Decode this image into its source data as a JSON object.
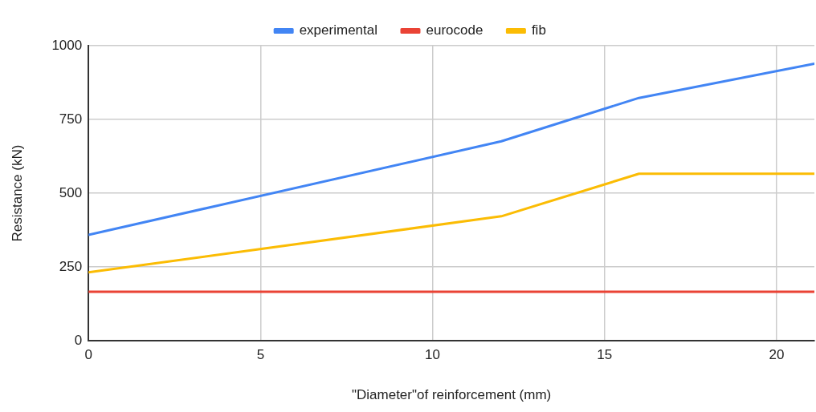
{
  "chart_data": {
    "type": "line",
    "xlabel": "\"Diameter\"of reinforcement (mm)",
    "ylabel": "Resistance (kN)",
    "xlim": [
      0,
      21.1
    ],
    "xticks": [
      0,
      5,
      10,
      15,
      20
    ],
    "ylim": [
      0,
      1000
    ],
    "yticks": [
      0,
      250,
      500,
      750,
      1000
    ],
    "grid": true,
    "legend": "top",
    "marker": "none",
    "line_style": "solid",
    "series": [
      {
        "name": "experimental",
        "color": "#4285f4",
        "x": [
          0,
          12,
          16,
          21.1
        ],
        "values": [
          359,
          676,
          823,
          939
        ]
      },
      {
        "name": "eurocode",
        "color": "#ea4335",
        "x": [
          0,
          21.1
        ],
        "values": [
          166,
          166
        ]
      },
      {
        "name": "fib",
        "color": "#fbbc04",
        "x": [
          0,
          12,
          16,
          21.1
        ],
        "values": [
          232,
          422,
          566,
          566
        ]
      }
    ]
  }
}
